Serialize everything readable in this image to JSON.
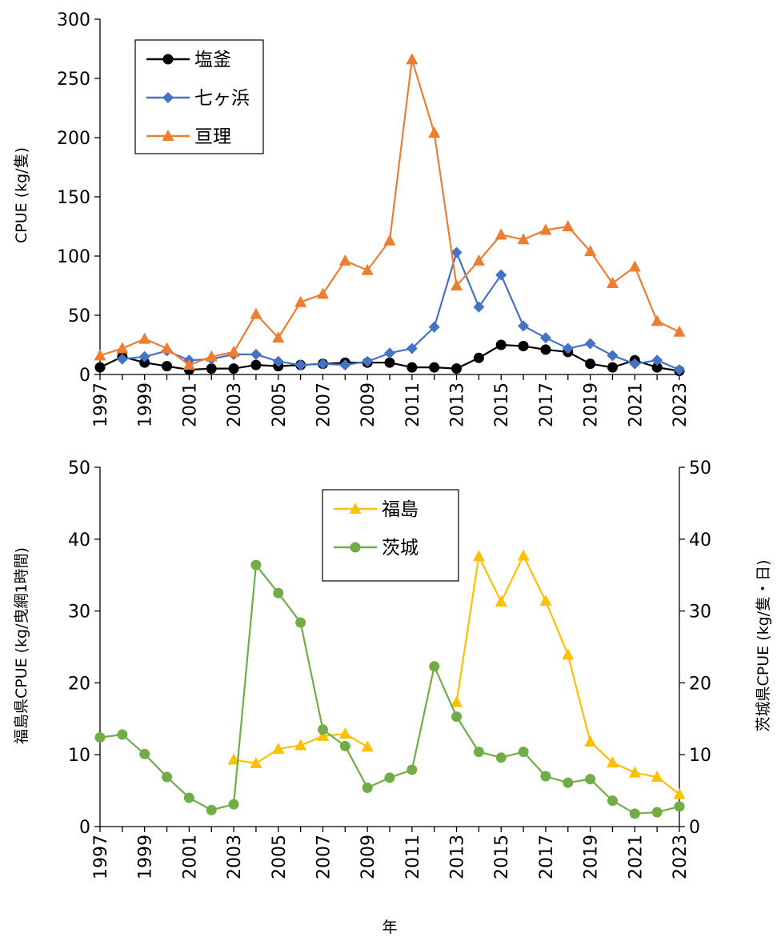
{
  "x_title": "年",
  "chart_data": [
    {
      "type": "line",
      "ylabel": "CPUE (kg/隻)",
      "ylim": [
        0,
        300
      ],
      "yticks": [
        0,
        50,
        100,
        150,
        200,
        250,
        300
      ],
      "xlim": [
        1997,
        2023
      ],
      "xticks": [
        1997,
        1999,
        2001,
        2003,
        2005,
        2007,
        2009,
        2011,
        2013,
        2015,
        2017,
        2019,
        2021,
        2023
      ],
      "grid": false,
      "legend_position": "top-left",
      "series": [
        {
          "name": "塩釜",
          "color": "#000000",
          "marker": "circle",
          "x": [
            1997,
            1998,
            1999,
            2000,
            2001,
            2002,
            2003,
            2004,
            2005,
            2006,
            2007,
            2008,
            2009,
            2010,
            2011,
            2012,
            2013,
            2014,
            2015,
            2016,
            2017,
            2018,
            2019,
            2020,
            2021,
            2022,
            2023
          ],
          "y": [
            6,
            15,
            10,
            7,
            4,
            5,
            5,
            8,
            7,
            8,
            9,
            10,
            10,
            10,
            6,
            6,
            5,
            14,
            25,
            24,
            21,
            19,
            9,
            6,
            12,
            6,
            3
          ]
        },
        {
          "name": "七ヶ浜",
          "color": "#4472C4",
          "marker": "diamond",
          "x": [
            1998,
            1999,
            2000,
            2001,
            2002,
            2003,
            2004,
            2005,
            2006,
            2007,
            2008,
            2009,
            2010,
            2011,
            2012,
            2013,
            2014,
            2015,
            2016,
            2017,
            2018,
            2019,
            2020,
            2021,
            2022,
            2023
          ],
          "y": [
            13,
            15,
            20,
            12,
            13,
            17,
            17,
            11,
            8,
            9,
            8,
            11,
            18,
            22,
            40,
            103,
            57,
            84,
            41,
            31,
            22,
            26,
            16,
            9,
            12,
            4
          ]
        },
        {
          "name": "亘理",
          "color": "#ED7D31",
          "marker": "triangle",
          "x": [
            1997,
            1998,
            1999,
            2000,
            2001,
            2002,
            2003,
            2004,
            2005,
            2006,
            2007,
            2008,
            2009,
            2010,
            2011,
            2012,
            2013,
            2014,
            2015,
            2016,
            2017,
            2018,
            2019,
            2020,
            2021,
            2022,
            2023
          ],
          "y": [
            16,
            22,
            30,
            22,
            8,
            15,
            19,
            51,
            31,
            61,
            68,
            96,
            88,
            113,
            266,
            204,
            75,
            96,
            118,
            114,
            122,
            125,
            104,
            77,
            91,
            45,
            36
          ]
        }
      ]
    },
    {
      "type": "line",
      "ylabel": "福島県CPUE (kg/曳網1時間)",
      "ylabel_right": "茨城県CPUE (kg/隻・日)",
      "ylim": [
        0,
        50
      ],
      "yticks": [
        0,
        10,
        20,
        30,
        40,
        50
      ],
      "xlim": [
        1997,
        2023
      ],
      "xticks": [
        1997,
        1999,
        2001,
        2003,
        2005,
        2007,
        2009,
        2011,
        2013,
        2015,
        2017,
        2019,
        2021,
        2023
      ],
      "grid": false,
      "legend_position": "top-center",
      "series": [
        {
          "name": "福島",
          "color": "#FFC000",
          "marker": "triangle",
          "segments": [
            {
              "x": [
                2003,
                2004,
                2005,
                2006,
                2007,
                2008,
                2009
              ],
              "y": [
                9.3,
                8.8,
                10.8,
                11.3,
                12.6,
                12.9,
                11.1
              ]
            },
            {
              "x": [
                2013,
                2014,
                2015,
                2016,
                2017,
                2018,
                2019,
                2020,
                2021,
                2022,
                2023
              ],
              "y": [
                17.3,
                37.6,
                31.3,
                37.7,
                31.4,
                23.9,
                11.8,
                8.9,
                7.5,
                6.9,
                4.5
              ]
            }
          ]
        },
        {
          "name": "茨城",
          "color": "#70AD47",
          "marker": "circle",
          "segments": [
            {
              "x": [
                1997,
                1998,
                1999,
                2000,
                2001,
                2002,
                2003,
                2004,
                2005,
                2006,
                2007,
                2008,
                2009,
                2010,
                2011,
                2012,
                2013,
                2014,
                2015,
                2016,
                2017,
                2018,
                2019,
                2020,
                2021,
                2022,
                2023
              ],
              "y": [
                12.4,
                12.8,
                10.1,
                6.9,
                4.0,
                2.3,
                3.1,
                36.4,
                32.5,
                28.4,
                13.5,
                11.2,
                5.4,
                6.8,
                7.9,
                22.3,
                15.3,
                10.4,
                9.6,
                10.4,
                7.0,
                6.1,
                6.6,
                3.6,
                1.8,
                2.0,
                2.8
              ]
            }
          ]
        }
      ]
    }
  ]
}
